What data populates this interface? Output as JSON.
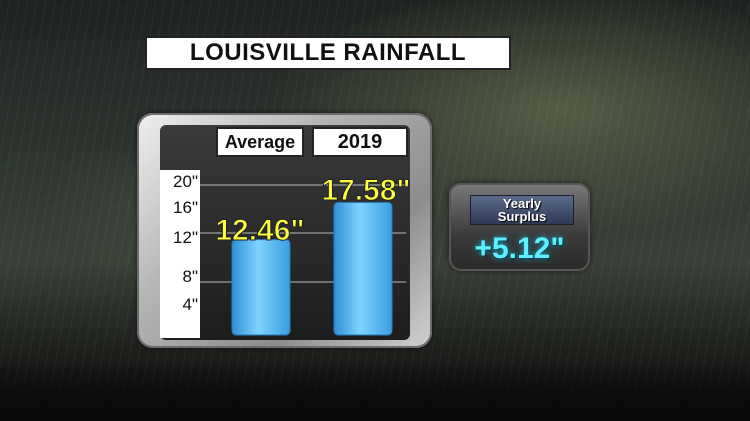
{
  "title": "LOUISVILLE RAINFALL",
  "chart_data": {
    "type": "bar",
    "categories": [
      "Average",
      "2019"
    ],
    "values": [
      12.46,
      17.58
    ],
    "data_labels": [
      "12.46\"",
      "17.58\""
    ],
    "y_ticks": [
      4,
      8,
      12,
      16,
      20
    ],
    "y_tick_labels": [
      "4\"",
      "8\"",
      "12\"",
      "16\"",
      "20\""
    ],
    "ylim": [
      0,
      20
    ],
    "grid": true,
    "bar_color": "#4fb6f0"
  },
  "surplus": {
    "label_line1": "Yearly",
    "label_line2": "Surplus",
    "value": "+5.12\""
  },
  "colors": {
    "data_label": "#ffff40",
    "surplus_value": "#5ff0ff"
  }
}
